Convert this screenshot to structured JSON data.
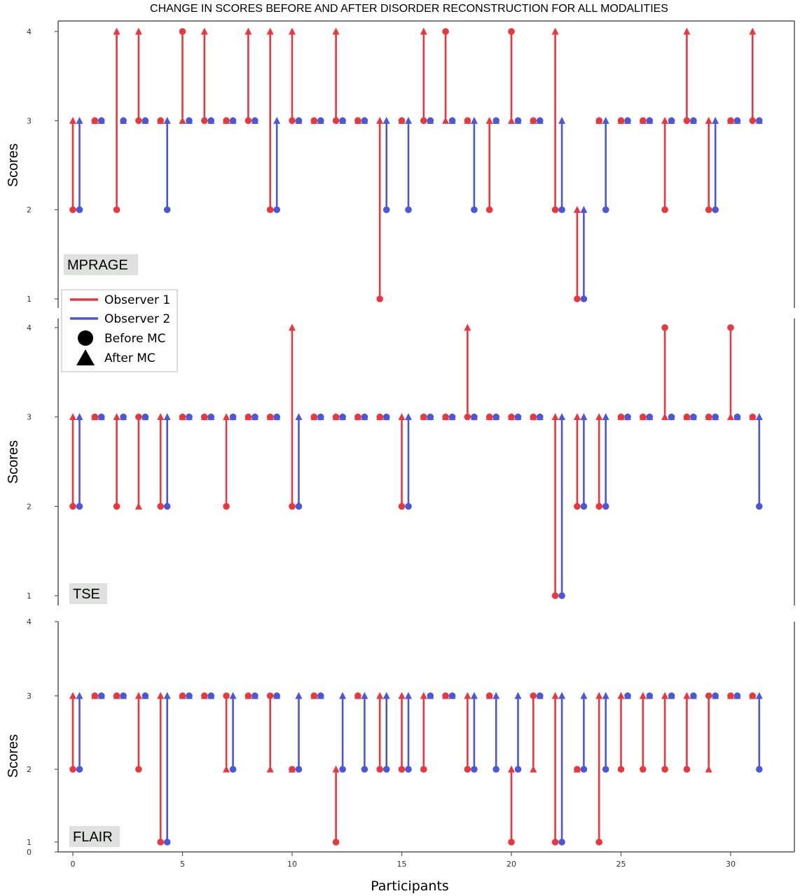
{
  "chart_data": {
    "type": "scatter",
    "title": "CHANGE IN SCORES BEFORE AND AFTER DISORDER RECONSTRUCTION FOR ALL MODALITIES",
    "xlabel": "Participants",
    "ylabel": "Scores",
    "xlim": [
      -1.5,
      33
    ],
    "x_ticks": [
      0,
      5,
      10,
      15,
      20,
      25,
      30
    ],
    "colors": {
      "observer1": "#e8383d",
      "observer2": "#4a57d8"
    },
    "legend": {
      "position": "left",
      "entries": [
        "Observer 1",
        "Observer 2",
        "Before MC",
        "After MC"
      ]
    },
    "panels": [
      {
        "label": "MPRAGE",
        "y_ticks": [
          1,
          2,
          3,
          4
        ],
        "observer1": {
          "before": [
            2,
            3,
            2,
            3,
            3,
            4,
            3,
            3,
            3,
            2,
            3,
            3,
            3,
            3,
            1,
            3,
            3,
            4,
            3,
            2,
            4,
            3,
            2,
            1,
            3,
            3,
            3,
            2,
            3,
            2,
            3,
            3
          ],
          "after": [
            3,
            3,
            4,
            4,
            3,
            3,
            4,
            3,
            4,
            4,
            4,
            3,
            4,
            3,
            3,
            3,
            4,
            3,
            3,
            3,
            3,
            3,
            4,
            2,
            3,
            3,
            3,
            3,
            4,
            3,
            3,
            4
          ]
        },
        "observer2": {
          "before": [
            2,
            3,
            3,
            3,
            2,
            3,
            3,
            3,
            3,
            2,
            3,
            3,
            3,
            3,
            2,
            2,
            3,
            3,
            2,
            3,
            3,
            3,
            2,
            1,
            2,
            3,
            3,
            3,
            3,
            2,
            3,
            3
          ],
          "after": [
            3,
            3,
            3,
            3,
            3,
            3,
            3,
            3,
            3,
            3,
            3,
            3,
            3,
            3,
            3,
            3,
            3,
            3,
            3,
            3,
            3,
            3,
            3,
            2,
            3,
            3,
            3,
            3,
            3,
            3,
            3,
            3
          ]
        }
      },
      {
        "label": "TSE",
        "y_ticks": [
          1,
          2,
          3,
          4
        ],
        "observer1": {
          "before": [
            2,
            3,
            2,
            3,
            2,
            3,
            3,
            2,
            3,
            3,
            2,
            3,
            3,
            3,
            3,
            2,
            3,
            3,
            3,
            3,
            3,
            3,
            1,
            2,
            2,
            3,
            3,
            4,
            3,
            3,
            4,
            3
          ],
          "after": [
            3,
            3,
            3,
            2,
            3,
            3,
            3,
            3,
            3,
            3,
            4,
            3,
            3,
            3,
            3,
            3,
            3,
            3,
            4,
            3,
            3,
            3,
            3,
            3,
            3,
            3,
            3,
            3,
            3,
            3,
            3,
            3
          ]
        },
        "observer2": {
          "before": [
            2,
            3,
            3,
            3,
            2,
            3,
            3,
            3,
            3,
            3,
            2,
            3,
            3,
            3,
            3,
            2,
            3,
            3,
            3,
            3,
            3,
            3,
            1,
            2,
            2,
            3,
            3,
            3,
            3,
            3,
            3,
            2
          ],
          "after": [
            3,
            3,
            3,
            3,
            3,
            3,
            3,
            3,
            3,
            3,
            3,
            3,
            3,
            3,
            3,
            3,
            3,
            3,
            3,
            3,
            3,
            3,
            3,
            3,
            3,
            3,
            3,
            3,
            3,
            3,
            3,
            3
          ]
        }
      },
      {
        "label": "FLAIR",
        "y_ticks": [
          0,
          1,
          2,
          3,
          4
        ],
        "observer1": {
          "before": [
            2,
            3,
            3,
            2,
            1,
            3,
            3,
            3,
            3,
            3,
            2,
            3,
            1,
            3,
            2,
            2,
            2,
            3,
            2,
            3,
            1,
            3,
            1,
            2,
            1,
            2,
            2,
            2,
            2,
            3,
            3,
            3
          ],
          "after": [
            3,
            3,
            3,
            3,
            3,
            3,
            3,
            2,
            3,
            2,
            2,
            3,
            2,
            3,
            3,
            3,
            3,
            3,
            3,
            3,
            2,
            2,
            3,
            2,
            3,
            3,
            3,
            3,
            3,
            2,
            3,
            3
          ]
        },
        "observer2": {
          "before": [
            2,
            3,
            3,
            3,
            1,
            3,
            3,
            2,
            3,
            3,
            2,
            3,
            2,
            2,
            2,
            2,
            3,
            3,
            2,
            2,
            2,
            3,
            1,
            2,
            2,
            3,
            3,
            3,
            3,
            3,
            3,
            2
          ],
          "after": [
            3,
            3,
            3,
            3,
            3,
            3,
            3,
            3,
            3,
            3,
            3,
            3,
            3,
            3,
            3,
            3,
            3,
            3,
            3,
            3,
            3,
            3,
            3,
            3,
            3,
            3,
            3,
            3,
            3,
            3,
            3,
            3
          ]
        }
      }
    ]
  }
}
